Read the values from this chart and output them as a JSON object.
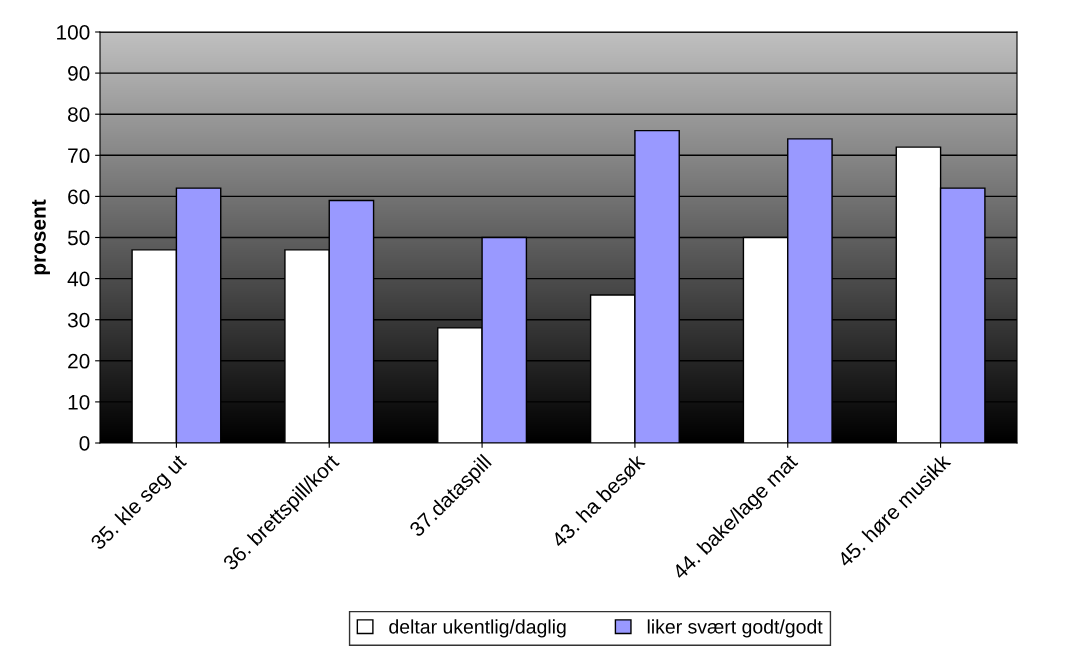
{
  "chart_data": {
    "type": "bar",
    "ylabel": "prosent",
    "categories": [
      "35. kle seg ut",
      "36. brettspill/kort",
      "37.dataspill",
      "43. ha besøk",
      "44. bake/lage mat",
      "45. høre musikk"
    ],
    "series": [
      {
        "name": "deltar ukentlig/daglig",
        "color": "#ffffff",
        "values": [
          47,
          47,
          28,
          36,
          50,
          72
        ]
      },
      {
        "name": "liker svært godt/godt",
        "color": "#9999ff",
        "values": [
          62,
          59,
          50,
          76,
          74,
          62
        ]
      }
    ],
    "ylim": [
      0,
      100
    ],
    "yticks": [
      0,
      10,
      20,
      30,
      40,
      50,
      60,
      70,
      80,
      90,
      100
    ],
    "grid": "y",
    "legend": "bottom"
  }
}
